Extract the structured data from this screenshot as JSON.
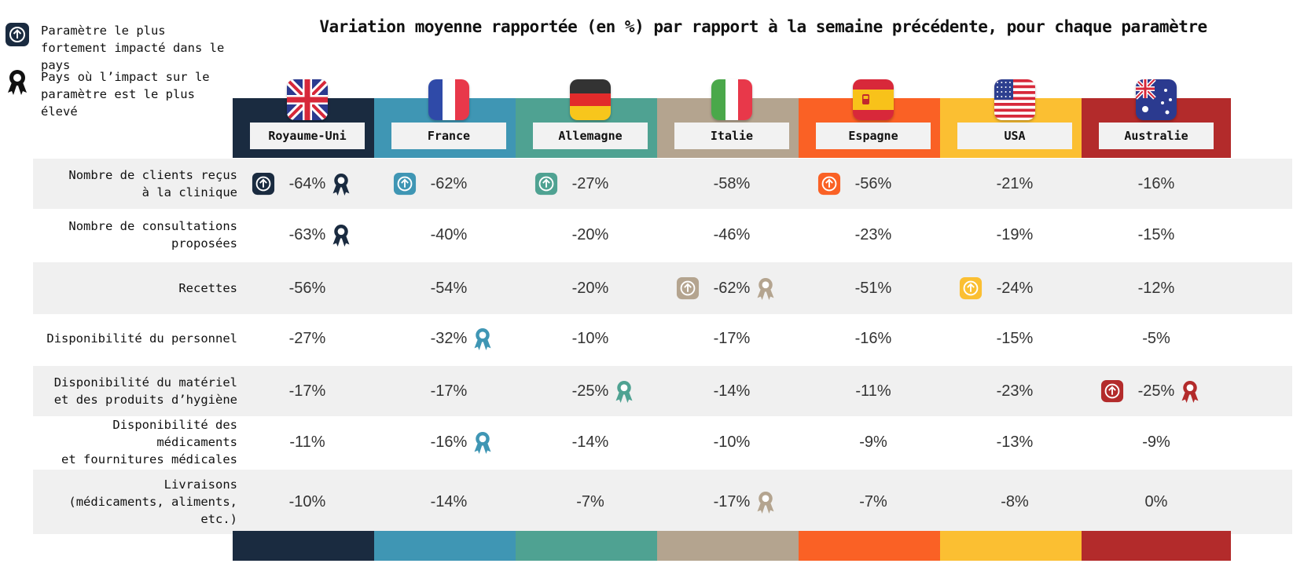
{
  "title": "Variation moyenne rapportée (en %) par rapport à la semaine précédente, pour chaque paramètre",
  "legend": {
    "most_impacted": "Paramètre le plus fortement impacté dans le pays",
    "highest_country": "Pays où l’impact sur le paramètre est le plus élevé"
  },
  "chart_data": {
    "type": "table",
    "title": "Variation moyenne rapportée (en %) par rapport à la semaine précédente, pour chaque paramètre",
    "countries": [
      {
        "name": "Royaume-Uni",
        "color": "#1a2b40",
        "flag": "uk-flag"
      },
      {
        "name": "France",
        "color": "#3f96b4",
        "flag": "france-flag"
      },
      {
        "name": "Allemagne",
        "color": "#4fa292",
        "flag": "germany-flag"
      },
      {
        "name": "Italie",
        "color": "#b4a48f",
        "flag": "italy-flag"
      },
      {
        "name": "Espagne",
        "color": "#fa6125",
        "flag": "spain-flag"
      },
      {
        "name": "USA",
        "color": "#fbbf32",
        "flag": "usa-flag"
      },
      {
        "name": "Australie",
        "color": "#b32b2b",
        "flag": "australia-flag"
      }
    ],
    "rows": [
      {
        "label": [
          "Nombre de clients reçus",
          "à la clinique"
        ],
        "values": [
          "-64%",
          "-62%",
          "-27%",
          "-58%",
          "-56%",
          "-21%",
          "-16%"
        ],
        "most_impacted": [
          0,
          1,
          2,
          4
        ],
        "highest": [
          0
        ]
      },
      {
        "label": [
          "Nombre de consultations",
          "proposées"
        ],
        "values": [
          "-63%",
          "-40%",
          "-20%",
          "-46%",
          "-23%",
          "-19%",
          "-15%"
        ],
        "most_impacted": [],
        "highest": [
          0
        ]
      },
      {
        "label": [
          "Recettes"
        ],
        "values": [
          "-56%",
          "-54%",
          "-20%",
          "-62%",
          "-51%",
          "-24%",
          "-12%"
        ],
        "most_impacted": [
          3,
          5
        ],
        "highest": [
          3
        ]
      },
      {
        "label": [
          "Disponibilité du personnel"
        ],
        "values": [
          "-27%",
          "-32%",
          "-10%",
          "-17%",
          "-16%",
          "-15%",
          "-5%"
        ],
        "most_impacted": [],
        "highest": [
          1
        ]
      },
      {
        "label": [
          "Disponibilité du matériel",
          "et des produits d’hygiène"
        ],
        "values": [
          "-17%",
          "-17%",
          "-25%",
          "-14%",
          "-11%",
          "-23%",
          "-25%"
        ],
        "most_impacted": [
          6
        ],
        "highest": [
          2,
          6
        ]
      },
      {
        "label": [
          "Disponibilité des médicaments",
          "et fournitures médicales"
        ],
        "values": [
          "-11%",
          "-16%",
          "-14%",
          "-10%",
          "-9%",
          "-13%",
          "-9%"
        ],
        "most_impacted": [],
        "highest": [
          1
        ]
      },
      {
        "label": [
          "Livraisons",
          "(médicaments, aliments,",
          "etc.)"
        ],
        "values": [
          "-10%",
          "-14%",
          "-7%",
          "-17%",
          "-7%",
          "-8%",
          "0%"
        ],
        "most_impacted": [],
        "highest": [
          3
        ]
      }
    ],
    "icons": {
      "most_impacted": "arrow-up-circle-icon",
      "highest": "award-ribbon-icon"
    }
  }
}
